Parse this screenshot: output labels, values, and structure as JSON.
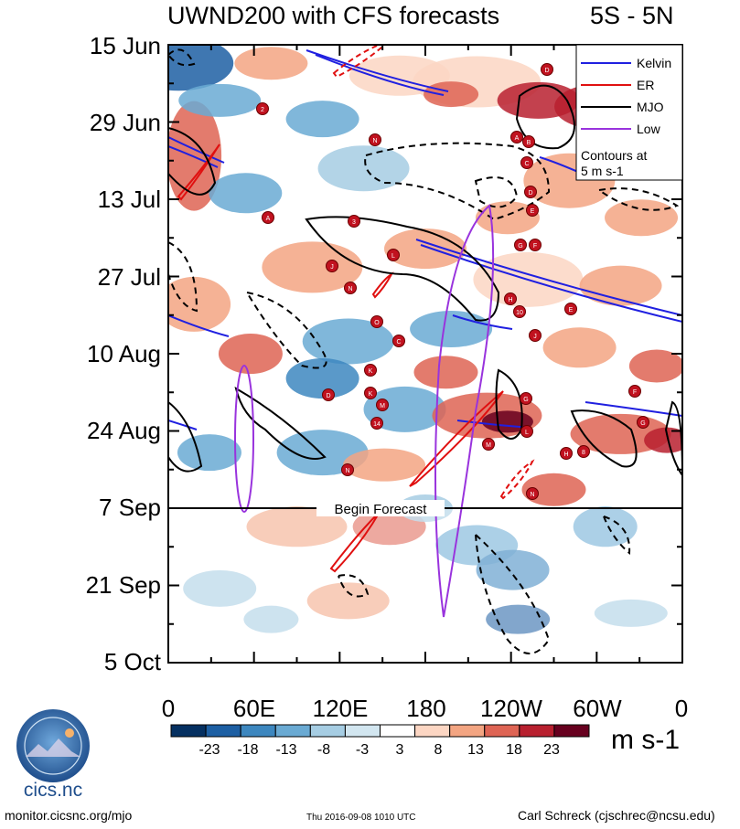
{
  "header": {
    "title": "UWND200 with CFS forecasts",
    "region": "5S - 5N"
  },
  "chart_data": {
    "type": "heatmap",
    "title": "UWND200 with CFS forecasts",
    "subtitle": "5S - 5N",
    "xlabel": "",
    "ylabel": "",
    "x_ticks": [
      "0",
      "60E",
      "120E",
      "180",
      "120W",
      "60W",
      "0"
    ],
    "y_ticks": [
      "15 Jun",
      "29 Jun",
      "13 Jul",
      "27 Jul",
      "10 Aug",
      "24 Aug",
      "7 Sep",
      "21 Sep",
      "5 Oct"
    ],
    "x_range_deg": [
      0,
      360
    ],
    "time_range": [
      "15 Jun",
      "5 Oct"
    ],
    "forecast_start": "7 Sep",
    "forecast_label": "Begin Forecast",
    "colorbar": {
      "labels": [
        "-23",
        "-18",
        "-13",
        "-8",
        "-3",
        "3",
        "8",
        "13",
        "18",
        "23"
      ],
      "colors": [
        "#053061",
        "#1d5fa3",
        "#3d87bf",
        "#6aaad3",
        "#a6cde3",
        "#d2e6f0",
        "#ffffff",
        "#fcd6c3",
        "#f3a582",
        "#de6454",
        "#b8202f",
        "#67001f"
      ],
      "units": "m s-1"
    },
    "legend": {
      "position": "top-right",
      "entries": [
        {
          "label": "Kelvin",
          "color": "#2020e0"
        },
        {
          "label": "ER",
          "color": "#e01010"
        },
        {
          "label": "MJO",
          "color": "#000000"
        },
        {
          "label": "Low",
          "color": "#9933dd"
        }
      ],
      "note": "Contours at 5 m s-1"
    },
    "storms": [
      "D",
      "2",
      "A",
      "B",
      "N",
      "C",
      "D",
      "A",
      "3",
      "E",
      "G",
      "F",
      "L",
      "J",
      "N",
      "O",
      "C",
      "H",
      "10",
      "J",
      "E",
      "D",
      "M",
      "K",
      "G",
      "K",
      "14",
      "L",
      "M",
      "F",
      "G",
      "H",
      "8",
      "N",
      "N"
    ]
  },
  "footer": {
    "logo_text": "cics.nc",
    "url": "monitor.cicsnc.org/mjo",
    "timestamp": "Thu 2016-09-08 1010 UTC",
    "author": "Carl Schreck (cjschrec@ncsu.edu)"
  }
}
